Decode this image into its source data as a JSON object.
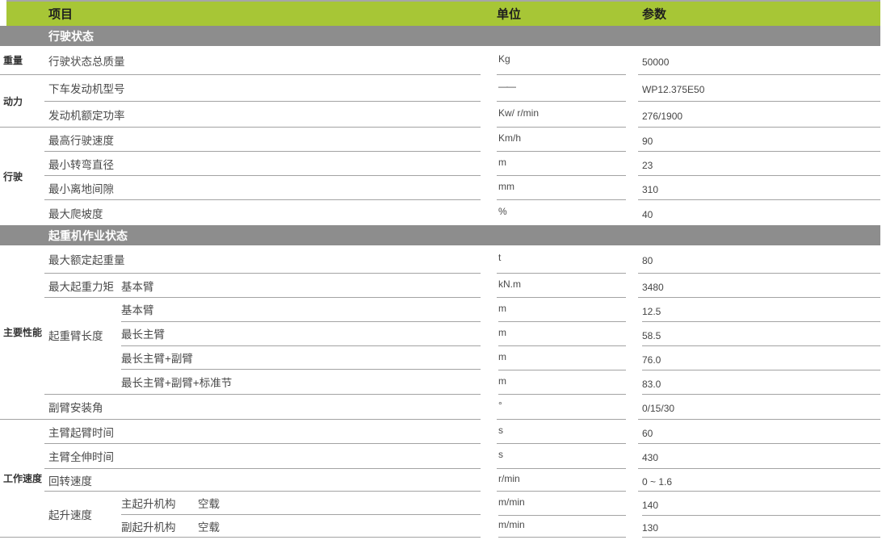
{
  "colors": {
    "accent_green": "#a7c636",
    "section_gray": "#8d8d8d",
    "line_gray": "#a3a3a3",
    "header_text": "#1e1e1e",
    "body_text": "#4a4a4a"
  },
  "header": {
    "item": "项目",
    "unit": "单位",
    "param": "参数"
  },
  "sections": {
    "driving": "行驶状态",
    "crane": "起重机作业状态"
  },
  "categories": {
    "weight": "重量",
    "power": "动力",
    "driving": "行驶",
    "performance": "主要性能",
    "speed": "工作速度"
  },
  "groups": {
    "boom_length": "起重臂长度",
    "hoist_speed": "起升速度"
  },
  "rows": {
    "total_mass": {
      "label": "行驶状态总质量",
      "unit": "Kg",
      "value": "50000"
    },
    "engine_model": {
      "label": "下车发动机型号",
      "unit": "——",
      "value": "WP12.375E50"
    },
    "engine_power": {
      "label": "发动机额定功率",
      "unit": "Kw/ r/min",
      "value": "276/1900"
    },
    "max_speed": {
      "label": "最高行驶速度",
      "unit": "Km/h",
      "value": "90"
    },
    "min_turning_diameter": {
      "label": "最小转弯直径",
      "unit": "m",
      "value": "23"
    },
    "min_ground_clearance": {
      "label": "最小离地间隙",
      "unit": "mm",
      "value": "310"
    },
    "max_gradeability": {
      "label": "最大爬坡度",
      "unit": "%",
      "value": "40"
    },
    "max_rated_load": {
      "label": "最大额定起重量",
      "unit": "t",
      "value": "80"
    },
    "max_load_moment": {
      "label": "最大起重力矩",
      "sub": "基本臂",
      "unit": "kN.m",
      "value": "3480"
    },
    "boom_basic": {
      "sub": "基本臂",
      "unit": "m",
      "value": "12.5"
    },
    "boom_longest_main": {
      "sub": "最长主臂",
      "unit": "m",
      "value": "58.5"
    },
    "boom_main_jib": {
      "sub": "最长主臂+副臂",
      "unit": "m",
      "value": "76.0"
    },
    "boom_main_jib_insert": {
      "sub": "最长主臂+副臂+标准节",
      "unit": "m",
      "value": "83.0"
    },
    "jib_install_angle": {
      "label": "副臂安装角",
      "unit": "°",
      "value": "0/15/30"
    },
    "boom_raising_time": {
      "label": "主臂起臂时间",
      "unit": "s",
      "value": "60"
    },
    "boom_extending_time": {
      "label": "主臂全伸时间",
      "unit": "s",
      "value": "430"
    },
    "slewing_speed": {
      "label": "回转速度",
      "unit": "r/min",
      "value": "0 ~ 1.6"
    },
    "main_hoist": {
      "sub": "主起升机构",
      "cond": "空载",
      "unit": "m/min",
      "value": "140"
    },
    "aux_hoist": {
      "sub": "副起升机构",
      "cond": "空载",
      "unit": "m/min",
      "value": "130"
    }
  }
}
